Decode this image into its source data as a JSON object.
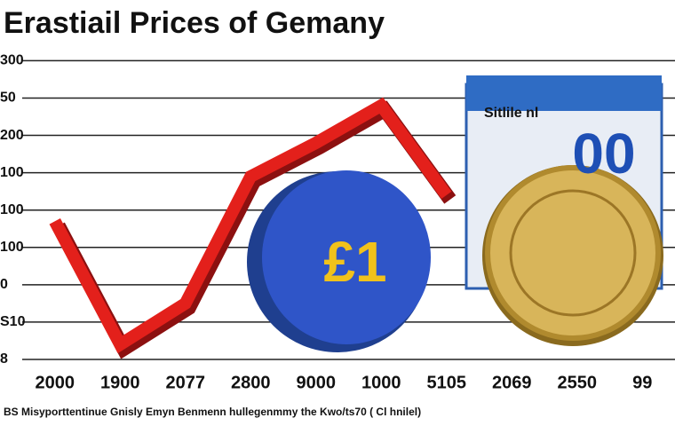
{
  "chart_data": {
    "type": "line",
    "title": "Erastiail Prices of Gemany",
    "categories": [
      "2000",
      "1900",
      "2077",
      "2800",
      "9000",
      "1000",
      "5105",
      "2069",
      "2550",
      "99"
    ],
    "series": [
      {
        "name": null,
        "color": "#e3201b",
        "values": [
          3.7,
          0.4,
          1.5,
          4.9,
          5.8,
          6.8,
          4.4,
          null,
          null,
          null
        ]
      }
    ],
    "ylim": [
      0,
      8.2
    ],
    "yticks": [
      {
        "value": 0,
        "label": "8"
      },
      {
        "value": 1,
        "label": "S10"
      },
      {
        "value": 2,
        "label": "0"
      },
      {
        "value": 3,
        "label": "100"
      },
      {
        "value": 4,
        "label": "100"
      },
      {
        "value": 5,
        "label": "100"
      },
      {
        "value": 6,
        "label": "200"
      },
      {
        "value": 7,
        "label": "50"
      },
      {
        "value": 8,
        "label": "300"
      }
    ],
    "grid": true,
    "annotations": [
      "£1",
      "Sitlile nl",
      "00"
    ],
    "footnote": "BS Misyporttentinue Gnisly Emyn Benmenn hullegenmmy the Kwo/ts70 ( Cl hnilel)"
  }
}
